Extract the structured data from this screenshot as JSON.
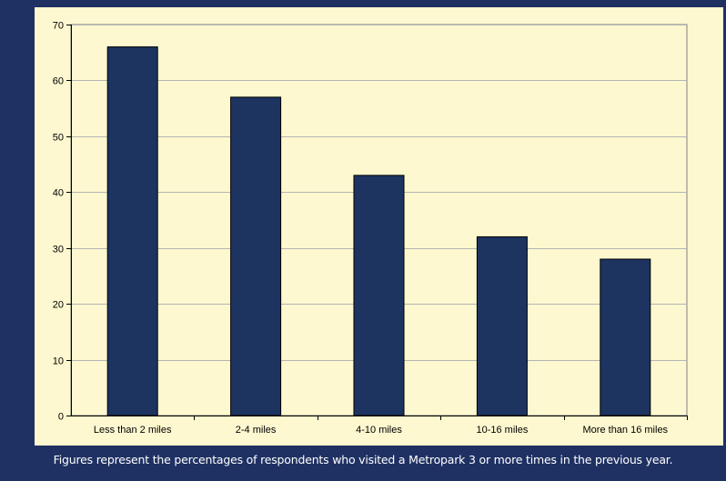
{
  "chart_data": {
    "type": "bar",
    "title": "",
    "xlabel": "",
    "ylabel": "",
    "categories": [
      "Less than 2 miles",
      "2-4 miles",
      "4-10 miles",
      "10-16 miles",
      "More than 16 miles"
    ],
    "values": [
      66,
      57,
      43,
      32,
      28
    ],
    "ylim": [
      0,
      70
    ],
    "yticks": [
      0,
      10,
      20,
      30,
      40,
      50,
      60,
      70
    ],
    "grid": true,
    "legend": "none",
    "colors": {
      "bar": "#1d3461",
      "plot_background": "#fdf8cf",
      "page_background": "#1f3163",
      "gridline": "#b4b4b4"
    }
  },
  "caption": "Figures represent the percentages of respondents who visited a Metropark 3 or more times in the previous year."
}
